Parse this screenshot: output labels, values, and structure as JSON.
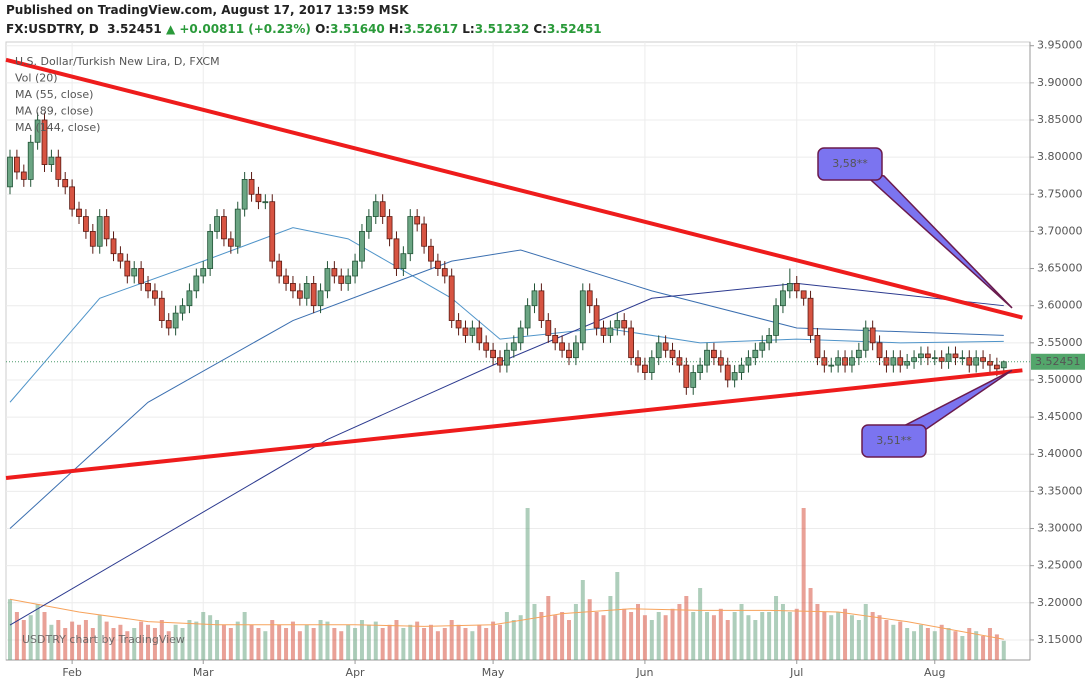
{
  "header": {
    "published": "Published on TradingView.com, August 17, 2017 13:59 MSK",
    "symbol": "FX:USDTRY, D",
    "last": "3.52451",
    "change": "▲ +0.00811 (+0.23%)",
    "ohlc": [
      {
        "label": "O:",
        "value": "3.51640"
      },
      {
        "label": "H:",
        "value": "3.52617"
      },
      {
        "label": "L:",
        "value": "3.51232"
      },
      {
        "label": "C:",
        "value": "3.52451"
      }
    ]
  },
  "chart_data": {
    "type": "candlestick",
    "title": "U.S. Dollar/Turkish New Lira, D, FXCM",
    "watermark": "USDTRY chart by TradingView",
    "ylim": [
      3.123,
      3.955
    ],
    "yticks": [
      {
        "value": 3.15,
        "label": "3.15000"
      },
      {
        "value": 3.2,
        "label": "3.20000"
      },
      {
        "value": 3.25,
        "label": "3.25000"
      },
      {
        "value": 3.3,
        "label": "3.30000"
      },
      {
        "value": 3.35,
        "label": "3.35000"
      },
      {
        "value": 3.4,
        "label": "3.40000"
      },
      {
        "value": 3.45,
        "label": "3.45000"
      },
      {
        "value": 3.5,
        "label": "3.50000"
      },
      {
        "value": 3.55,
        "label": "3.55000"
      },
      {
        "value": 3.6,
        "label": "3.60000"
      },
      {
        "value": 3.65,
        "label": "3.65000"
      },
      {
        "value": 3.7,
        "label": "3.70000"
      },
      {
        "value": 3.75,
        "label": "3.75000"
      },
      {
        "value": 3.8,
        "label": "3.80000"
      },
      {
        "value": 3.85,
        "label": "3.85000"
      },
      {
        "value": 3.9,
        "label": "3.90000"
      },
      {
        "value": 3.95,
        "label": "3.95000"
      }
    ],
    "xlim": [
      -0.58,
      147.8
    ],
    "xticks": [
      {
        "value": 9,
        "label": "Feb"
      },
      {
        "value": 28,
        "label": "Mar"
      },
      {
        "value": 50,
        "label": "Apr"
      },
      {
        "value": 70,
        "label": "May"
      },
      {
        "value": 92,
        "label": "Jun"
      },
      {
        "value": 114,
        "label": "Jul"
      },
      {
        "value": 134,
        "label": "Aug"
      }
    ],
    "grid": true,
    "up_color": "#6ba583",
    "down_color": "#d75442",
    "last": {
      "value": 3.52451,
      "label": "3.52451"
    },
    "candles": {
      "open": [
        3.76,
        3.8,
        3.78,
        3.77,
        3.82,
        3.85,
        3.79,
        3.8,
        3.77,
        3.76,
        3.73,
        3.72,
        3.7,
        3.68,
        3.72,
        3.69,
        3.67,
        3.66,
        3.64,
        3.65,
        3.63,
        3.62,
        3.61,
        3.58,
        3.57,
        3.59,
        3.6,
        3.62,
        3.64,
        3.65,
        3.7,
        3.72,
        3.69,
        3.68,
        3.73,
        3.77,
        3.75,
        3.74,
        3.74,
        3.66,
        3.64,
        3.63,
        3.62,
        3.61,
        3.63,
        3.6,
        3.62,
        3.65,
        3.64,
        3.63,
        3.64,
        3.66,
        3.7,
        3.72,
        3.74,
        3.72,
        3.69,
        3.65,
        3.67,
        3.72,
        3.71,
        3.68,
        3.66,
        3.65,
        3.64,
        3.58,
        3.57,
        3.56,
        3.57,
        3.55,
        3.54,
        3.53,
        3.52,
        3.54,
        3.55,
        3.57,
        3.6,
        3.62,
        3.58,
        3.56,
        3.55,
        3.54,
        3.53,
        3.55,
        3.62,
        3.6,
        3.57,
        3.56,
        3.57,
        3.58,
        3.57,
        3.53,
        3.52,
        3.51,
        3.53,
        3.55,
        3.54,
        3.53,
        3.52,
        3.49,
        3.51,
        3.52,
        3.54,
        3.53,
        3.52,
        3.5,
        3.51,
        3.52,
        3.53,
        3.54,
        3.55,
        3.56,
        3.6,
        3.62,
        3.63,
        3.62,
        3.61,
        3.56,
        3.53,
        3.52,
        3.52,
        3.53,
        3.52,
        3.53,
        3.54,
        3.57,
        3.55,
        3.53,
        3.52,
        3.53,
        3.52,
        3.525,
        3.53,
        3.535,
        3.53,
        3.53,
        3.525,
        3.535,
        3.53,
        3.53,
        3.52,
        3.53,
        3.525,
        3.52,
        3.5164
      ],
      "high": [
        3.81,
        3.81,
        3.79,
        3.83,
        3.86,
        3.86,
        3.81,
        3.81,
        3.78,
        3.77,
        3.74,
        3.73,
        3.71,
        3.73,
        3.73,
        3.7,
        3.68,
        3.67,
        3.66,
        3.66,
        3.64,
        3.63,
        3.62,
        3.59,
        3.6,
        3.61,
        3.63,
        3.65,
        3.66,
        3.71,
        3.73,
        3.73,
        3.7,
        3.74,
        3.78,
        3.78,
        3.76,
        3.75,
        3.75,
        3.67,
        3.65,
        3.64,
        3.63,
        3.64,
        3.64,
        3.63,
        3.66,
        3.66,
        3.65,
        3.65,
        3.67,
        3.71,
        3.73,
        3.75,
        3.75,
        3.73,
        3.7,
        3.68,
        3.73,
        3.73,
        3.72,
        3.69,
        3.67,
        3.66,
        3.65,
        3.59,
        3.58,
        3.58,
        3.58,
        3.56,
        3.55,
        3.54,
        3.55,
        3.56,
        3.58,
        3.61,
        3.63,
        3.63,
        3.59,
        3.57,
        3.56,
        3.55,
        3.56,
        3.63,
        3.63,
        3.61,
        3.58,
        3.58,
        3.59,
        3.59,
        3.58,
        3.54,
        3.53,
        3.54,
        3.56,
        3.56,
        3.55,
        3.54,
        3.53,
        3.52,
        3.53,
        3.55,
        3.55,
        3.54,
        3.53,
        3.52,
        3.53,
        3.54,
        3.55,
        3.56,
        3.57,
        3.61,
        3.63,
        3.65,
        3.64,
        3.62,
        3.62,
        3.57,
        3.54,
        3.53,
        3.54,
        3.54,
        3.54,
        3.55,
        3.58,
        3.58,
        3.56,
        3.54,
        3.54,
        3.54,
        3.535,
        3.54,
        3.545,
        3.545,
        3.54,
        3.54,
        3.545,
        3.545,
        3.54,
        3.54,
        3.54,
        3.54,
        3.535,
        3.53,
        3.52617
      ],
      "low": [
        3.75,
        3.77,
        3.76,
        3.76,
        3.81,
        3.78,
        3.78,
        3.76,
        3.75,
        3.72,
        3.71,
        3.69,
        3.67,
        3.67,
        3.68,
        3.66,
        3.65,
        3.63,
        3.63,
        3.62,
        3.61,
        3.6,
        3.57,
        3.56,
        3.56,
        3.58,
        3.59,
        3.61,
        3.63,
        3.64,
        3.69,
        3.68,
        3.67,
        3.67,
        3.72,
        3.74,
        3.73,
        3.73,
        3.65,
        3.63,
        3.62,
        3.61,
        3.6,
        3.6,
        3.59,
        3.59,
        3.61,
        3.63,
        3.62,
        3.62,
        3.63,
        3.65,
        3.69,
        3.71,
        3.71,
        3.68,
        3.64,
        3.64,
        3.66,
        3.7,
        3.67,
        3.65,
        3.64,
        3.63,
        3.57,
        3.56,
        3.55,
        3.55,
        3.54,
        3.53,
        3.52,
        3.51,
        3.51,
        3.53,
        3.54,
        3.56,
        3.59,
        3.57,
        3.55,
        3.54,
        3.53,
        3.52,
        3.52,
        3.54,
        3.59,
        3.56,
        3.55,
        3.55,
        3.56,
        3.56,
        3.52,
        3.51,
        3.5,
        3.5,
        3.52,
        3.53,
        3.52,
        3.51,
        3.48,
        3.48,
        3.5,
        3.51,
        3.52,
        3.51,
        3.49,
        3.49,
        3.5,
        3.51,
        3.52,
        3.53,
        3.54,
        3.55,
        3.59,
        3.61,
        3.61,
        3.6,
        3.55,
        3.52,
        3.51,
        3.51,
        3.51,
        3.51,
        3.51,
        3.52,
        3.53,
        3.54,
        3.52,
        3.51,
        3.51,
        3.51,
        3.515,
        3.515,
        3.52,
        3.52,
        3.52,
        3.515,
        3.515,
        3.52,
        3.52,
        3.51,
        3.51,
        3.515,
        3.51,
        3.505,
        3.51232
      ],
      "close": [
        3.8,
        3.78,
        3.77,
        3.82,
        3.85,
        3.79,
        3.8,
        3.77,
        3.76,
        3.73,
        3.72,
        3.7,
        3.68,
        3.72,
        3.69,
        3.67,
        3.66,
        3.64,
        3.65,
        3.63,
        3.62,
        3.61,
        3.58,
        3.57,
        3.59,
        3.6,
        3.62,
        3.64,
        3.65,
        3.7,
        3.72,
        3.69,
        3.68,
        3.73,
        3.77,
        3.75,
        3.74,
        3.74,
        3.66,
        3.64,
        3.63,
        3.62,
        3.61,
        3.63,
        3.6,
        3.62,
        3.65,
        3.64,
        3.63,
        3.64,
        3.66,
        3.7,
        3.72,
        3.74,
        3.72,
        3.69,
        3.65,
        3.67,
        3.72,
        3.71,
        3.68,
        3.66,
        3.65,
        3.64,
        3.58,
        3.57,
        3.56,
        3.57,
        3.55,
        3.54,
        3.53,
        3.52,
        3.54,
        3.55,
        3.57,
        3.6,
        3.62,
        3.58,
        3.56,
        3.55,
        3.54,
        3.53,
        3.55,
        3.62,
        3.6,
        3.57,
        3.56,
        3.57,
        3.58,
        3.57,
        3.53,
        3.52,
        3.51,
        3.53,
        3.55,
        3.54,
        3.53,
        3.52,
        3.49,
        3.51,
        3.52,
        3.54,
        3.53,
        3.52,
        3.5,
        3.51,
        3.52,
        3.53,
        3.54,
        3.55,
        3.56,
        3.6,
        3.62,
        3.63,
        3.62,
        3.61,
        3.56,
        3.53,
        3.52,
        3.52,
        3.53,
        3.52,
        3.53,
        3.54,
        3.57,
        3.55,
        3.53,
        3.52,
        3.53,
        3.52,
        3.525,
        3.53,
        3.535,
        3.53,
        3.53,
        3.525,
        3.535,
        3.53,
        3.53,
        3.52,
        3.53,
        3.525,
        3.52,
        3.515,
        3.52451
      ]
    },
    "volume": {
      "name": "Vol (20)",
      "values": [
        38,
        30,
        25,
        28,
        35,
        30,
        22,
        25,
        20,
        24,
        22,
        25,
        20,
        28,
        24,
        20,
        22,
        18,
        20,
        24,
        22,
        20,
        25,
        18,
        22,
        20,
        25,
        24,
        30,
        28,
        25,
        22,
        20,
        24,
        30,
        22,
        20,
        18,
        25,
        22,
        20,
        24,
        18,
        22,
        20,
        25,
        24,
        20,
        18,
        22,
        20,
        25,
        22,
        24,
        20,
        22,
        25,
        20,
        22,
        24,
        20,
        22,
        18,
        20,
        25,
        22,
        20,
        18,
        22,
        20,
        24,
        22,
        30,
        25,
        28,
        95,
        35,
        30,
        40,
        28,
        30,
        25,
        35,
        50,
        38,
        30,
        28,
        40,
        55,
        32,
        30,
        35,
        28,
        25,
        30,
        28,
        32,
        35,
        40,
        30,
        45,
        30,
        28,
        32,
        25,
        30,
        35,
        28,
        25,
        30,
        30,
        40,
        35,
        30,
        32,
        95,
        45,
        35,
        30,
        28,
        30,
        32,
        28,
        25,
        35,
        30,
        28,
        25,
        22,
        24,
        20,
        18,
        22,
        20,
        18,
        22,
        20,
        18,
        15,
        20,
        18,
        15,
        20,
        16,
        12
      ],
      "ma": {
        "color": "#f7a35c",
        "x": [
          0,
          10,
          20,
          30,
          40,
          50,
          60,
          70,
          80,
          90,
          100,
          110,
          120,
          130,
          144
        ],
        "values": [
          38,
          30,
          24,
          22,
          22,
          22,
          21,
          22,
          29,
          32,
          31,
          31,
          30,
          24,
          13
        ]
      }
    },
    "series": [
      {
        "name": "MA (55, close)",
        "color": "#4f94c9",
        "x": [
          0,
          13,
          28,
          41,
          49,
          64,
          71,
          86,
          100,
          114,
          129,
          144
        ],
        "values": [
          3.47,
          3.61,
          3.66,
          3.705,
          3.69,
          3.61,
          3.555,
          3.57,
          3.55,
          3.555,
          3.55,
          3.552
        ]
      },
      {
        "name": "MA (89, close)",
        "color": "#3b6fb0",
        "x": [
          0,
          20,
          41,
          64,
          74,
          93,
          114,
          144
        ],
        "values": [
          3.3,
          3.47,
          3.58,
          3.66,
          3.675,
          3.62,
          3.57,
          3.56
        ]
      },
      {
        "name": "MA (144, close)",
        "color": "#2c3a8f",
        "x": [
          0,
          46,
          70,
          93,
          114,
          144
        ],
        "values": [
          3.17,
          3.42,
          3.52,
          3.61,
          3.63,
          3.6
        ]
      }
    ],
    "trendlines": [
      {
        "color": "#ee1c1c",
        "x": [
          -0.58,
          146.7
        ],
        "y": [
          3.931,
          3.584
        ]
      },
      {
        "color": "#ee1c1c",
        "x": [
          -0.58,
          146.7
        ],
        "y": [
          3.368,
          3.513
        ]
      }
    ],
    "callouts": [
      {
        "label": "3,58**",
        "x": 145.2,
        "y": 3.597
      },
      {
        "label": "3,51**",
        "x": 145.2,
        "y": 3.513
      }
    ]
  }
}
